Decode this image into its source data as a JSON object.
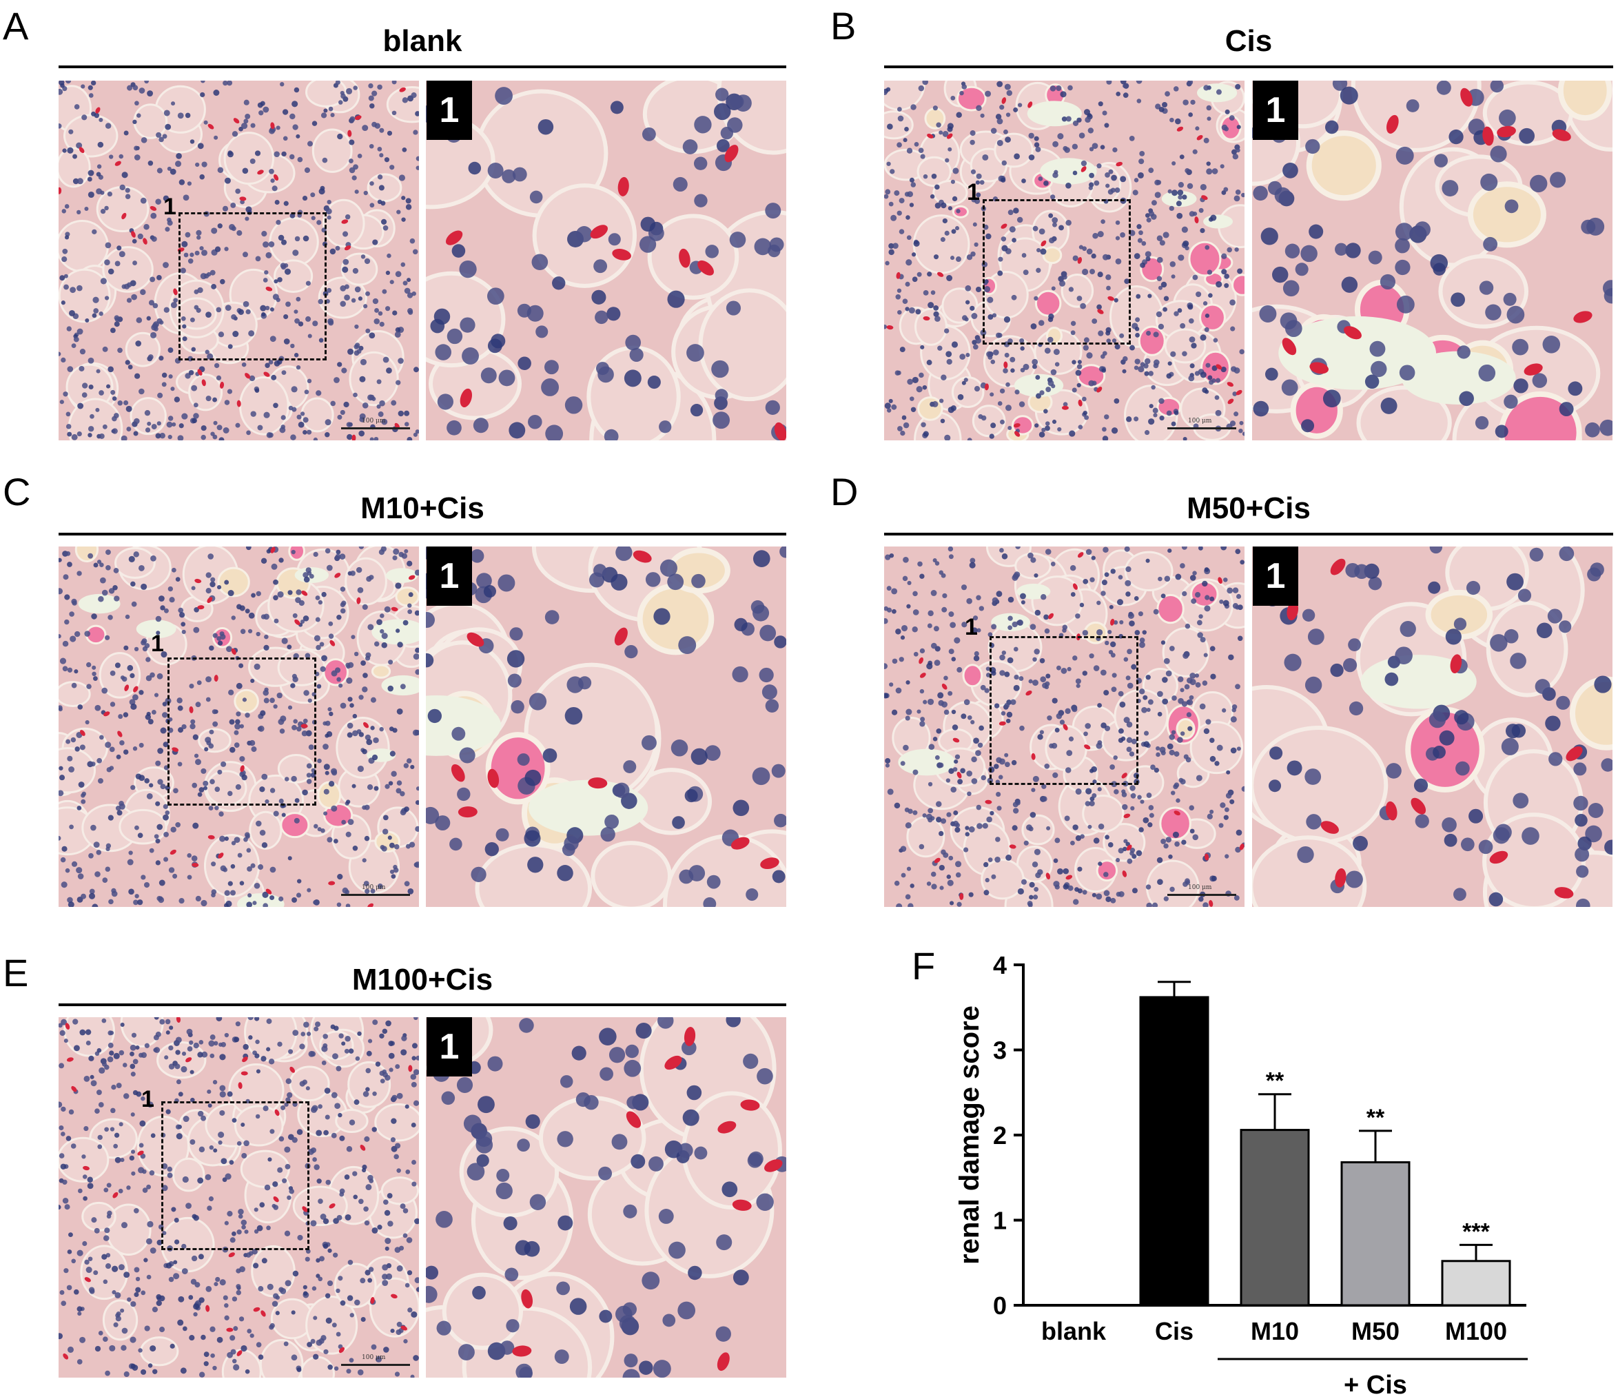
{
  "panels": [
    {
      "letter": "A",
      "title": "blank",
      "inset_label": "1",
      "roi_label": "1",
      "scale_text": "100 μm"
    },
    {
      "letter": "B",
      "title": "Cis",
      "inset_label": "1",
      "roi_label": "1",
      "scale_text": "100 μm"
    },
    {
      "letter": "C",
      "title": "M10+Cis",
      "inset_label": "1",
      "roi_label": "1",
      "scale_text": "100 μm"
    },
    {
      "letter": "D",
      "title": "M50+Cis",
      "inset_label": "1",
      "roi_label": "1",
      "scale_text": "100 μm"
    },
    {
      "letter": "E",
      "title": "M100+Cis",
      "inset_label": "1",
      "roi_label": "1",
      "scale_text": "100 μm"
    }
  ],
  "chart_panel_letter": "F",
  "colors": {
    "tissue": "#e9c3c3",
    "nucleus": "#4a4f86",
    "cast": "#f07aa4",
    "rbc": "#d8243c",
    "lumen": "#eef2e3"
  },
  "chart_data": {
    "type": "bar",
    "categories": [
      "blank",
      "Cis",
      "M10",
      "M50",
      "M100"
    ],
    "values": [
      0,
      3.62,
      2.06,
      1.68,
      0.52
    ],
    "errors": [
      0,
      0.18,
      0.42,
      0.37,
      0.19
    ],
    "significance": [
      "",
      "",
      "**",
      "**",
      "***"
    ],
    "bar_colors": [
      "#ffffff",
      "#000000",
      "#5e5e5e",
      "#a3a3a8",
      "#d8d8d8"
    ],
    "ylabel": "renal damage score",
    "ylim": [
      0,
      4
    ],
    "yticks": [
      "0",
      "1",
      "2",
      "3",
      "4"
    ],
    "group_label": "+ Cis",
    "grid": false
  }
}
